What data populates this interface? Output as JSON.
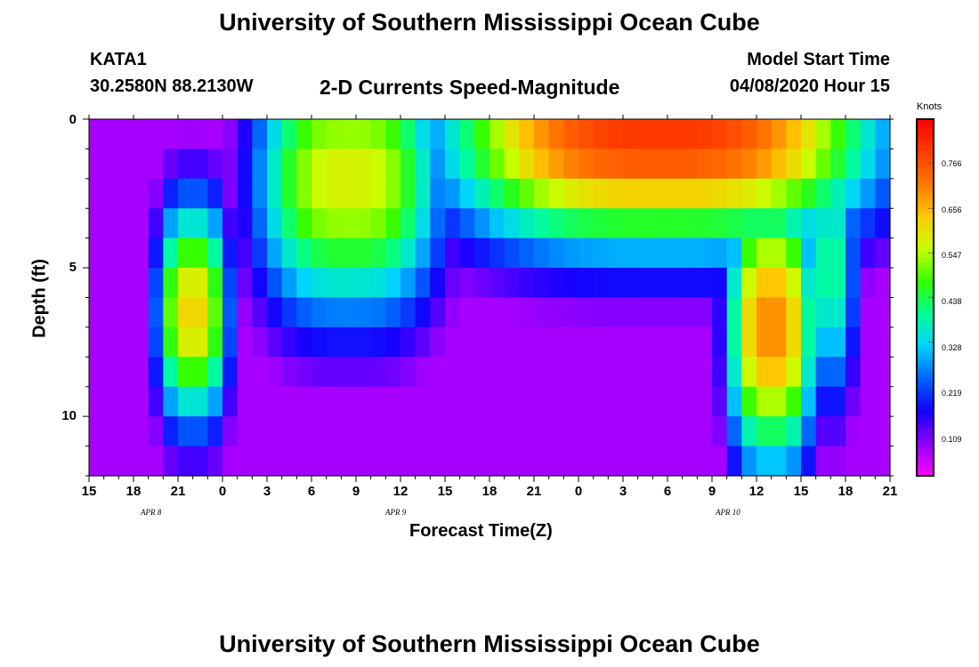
{
  "page": {
    "title_top": "University of Southern Mississippi Ocean Cube",
    "title_bottom": "University of Southern Mississippi Ocean Cube",
    "station_id": "KATA1",
    "station_coords": "30.2580N 88.2130W",
    "plot_title": "2-D Currents Speed-Magnitude",
    "model_label": "Model Start Time",
    "model_time": "04/08/2020 Hour 15"
  },
  "colors": {
    "scale": [
      "#ff00ff",
      "#8c00ff",
      "#1400ff",
      "#0064ff",
      "#00d2ff",
      "#00ff96",
      "#32ff00",
      "#c8ff00",
      "#ffc800",
      "#ff7800",
      "#ff3c00",
      "#ff0000"
    ]
  },
  "chart_data": {
    "type": "heatmap",
    "title": "2-D Currents Speed-Magnitude",
    "xlabel": "Forecast Time(Z)",
    "ylabel": "Depth (ft)",
    "x_ticks": [
      "15",
      "18",
      "21",
      "0",
      "3",
      "6",
      "9",
      "12",
      "15",
      "18",
      "21",
      "0",
      "3",
      "6",
      "9",
      "12",
      "15",
      "18",
      "21"
    ],
    "x_range_hours": [
      0,
      54
    ],
    "date_labels": [
      {
        "label": "APR 8",
        "hour": 4.5
      },
      {
        "label": "APR 9",
        "hour": 21
      },
      {
        "label": "APR 10",
        "hour": 44
      }
    ],
    "y_ticks": [
      "0",
      "5",
      "10"
    ],
    "y_range_ft": [
      0,
      12
    ],
    "colorbar": {
      "title": "Knots",
      "range": [
        0.0,
        0.875
      ],
      "ticks": [
        "0.766",
        "0.656",
        "0.547",
        "0.438",
        "0.328",
        "0.219",
        "0.109"
      ],
      "tick_values": [
        0.766,
        0.656,
        0.547,
        0.438,
        0.328,
        0.219,
        0.109
      ]
    },
    "depth_levels_ft": [
      0.5,
      1.5,
      2.5,
      3.5,
      4.5,
      5.5,
      6.5,
      7.5,
      8.5,
      9.5,
      10.5,
      11.5
    ],
    "value_units": "knots",
    "speed_fields_approx": [
      {
        "name": "event-1",
        "center_hour": 7,
        "half_width_hours": 2.5,
        "peak_knots": 0.62,
        "peak_depth_ft": 6.5,
        "spread_ft": 4.0
      },
      {
        "name": "event-2",
        "center_hour": 17.5,
        "half_width_hours": 6.5,
        "peak_knots": 0.58,
        "peak_depth_ft": 2.0,
        "spread_ft": 5.0
      },
      {
        "name": "event-3",
        "center_hour": 38.5,
        "half_width_hours": 15.0,
        "peak_knots": 0.8,
        "peak_depth_ft": 0.5,
        "spread_ft": 4.0
      },
      {
        "name": "event-3-lower",
        "center_hour": 46,
        "half_width_hours": 3.0,
        "peak_knots": 0.7,
        "peak_depth_ft": 7.0,
        "spread_ft": 5.0
      },
      {
        "name": "event-4",
        "center_hour": 50,
        "half_width_hours": 1.8,
        "peak_knots": 0.4,
        "peak_depth_ft": 5.0,
        "spread_ft": 5.0
      }
    ]
  }
}
